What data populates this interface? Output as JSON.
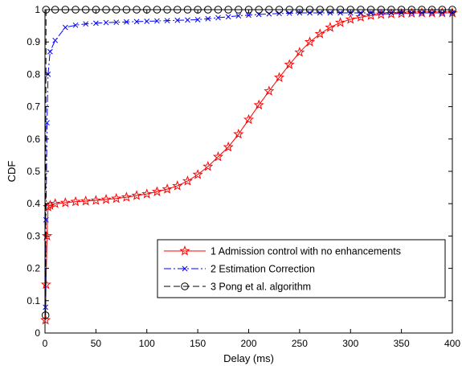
{
  "chart_data": {
    "type": "line",
    "title": "",
    "xlabel": "Delay (ms)",
    "ylabel": "CDF",
    "xlim": [
      0,
      400
    ],
    "ylim": [
      0,
      1
    ],
    "xticks": [
      0,
      50,
      100,
      150,
      200,
      250,
      300,
      350,
      400
    ],
    "yticks": [
      0,
      0.1,
      0.2,
      0.3,
      0.4,
      0.5,
      0.6,
      0.7,
      0.8,
      0.9,
      1
    ],
    "grid": false,
    "legend_position": "lower-right",
    "series": [
      {
        "name": "1 Admission control with no enhancements",
        "color": "#ff0000",
        "line_style": "solid",
        "marker": "star",
        "x": [
          0.5,
          1,
          2,
          3,
          5,
          10,
          20,
          30,
          40,
          50,
          60,
          70,
          80,
          90,
          100,
          110,
          120,
          130,
          140,
          150,
          160,
          170,
          180,
          190,
          200,
          210,
          220,
          230,
          240,
          250,
          260,
          270,
          280,
          290,
          300,
          310,
          320,
          330,
          340,
          350,
          360,
          370,
          380,
          390,
          400
        ],
        "y": [
          0.04,
          0.15,
          0.3,
          0.39,
          0.395,
          0.4,
          0.403,
          0.406,
          0.408,
          0.41,
          0.413,
          0.416,
          0.42,
          0.425,
          0.43,
          0.437,
          0.445,
          0.455,
          0.47,
          0.49,
          0.515,
          0.545,
          0.575,
          0.615,
          0.66,
          0.705,
          0.748,
          0.79,
          0.83,
          0.868,
          0.9,
          0.925,
          0.945,
          0.96,
          0.97,
          0.977,
          0.982,
          0.985,
          0.987,
          0.988,
          0.989,
          0.99,
          0.99,
          0.99,
          0.99
        ]
      },
      {
        "name": "2 Estimation Correction",
        "color": "#0000ff",
        "line_style": "dashdot",
        "marker": "x",
        "x": [
          0.5,
          1,
          2,
          3,
          5,
          10,
          20,
          30,
          40,
          50,
          60,
          70,
          80,
          90,
          100,
          110,
          120,
          130,
          140,
          150,
          160,
          170,
          180,
          190,
          200,
          210,
          220,
          230,
          240,
          250,
          260,
          270,
          280,
          290,
          300,
          310,
          320,
          330,
          340,
          350,
          360,
          370,
          380,
          390,
          400
        ],
        "y": [
          0.08,
          0.35,
          0.65,
          0.8,
          0.87,
          0.905,
          0.945,
          0.952,
          0.956,
          0.958,
          0.96,
          0.961,
          0.962,
          0.963,
          0.964,
          0.965,
          0.966,
          0.967,
          0.968,
          0.969,
          0.972,
          0.975,
          0.978,
          0.981,
          0.983,
          0.985,
          0.987,
          0.988,
          0.989,
          0.99,
          0.99,
          0.99,
          0.99,
          0.99,
          0.99,
          0.99,
          0.99,
          0.99,
          0.99,
          0.99,
          0.99,
          0.99,
          0.99,
          0.99,
          0.99
        ]
      },
      {
        "name": "3 Pong et al. algorithm",
        "color": "#000000",
        "line_style": "dashed",
        "marker": "circle",
        "x": [
          0.5,
          1,
          10,
          20,
          30,
          40,
          50,
          60,
          70,
          80,
          90,
          100,
          110,
          120,
          130,
          140,
          150,
          160,
          170,
          180,
          190,
          200,
          210,
          220,
          230,
          240,
          250,
          260,
          270,
          280,
          290,
          300,
          310,
          320,
          330,
          340,
          350,
          360,
          370,
          380,
          390,
          400
        ],
        "y": [
          0.055,
          1,
          1,
          1,
          1,
          1,
          1,
          1,
          1,
          1,
          1,
          1,
          1,
          1,
          1,
          1,
          1,
          1,
          1,
          1,
          1,
          1,
          1,
          1,
          1,
          1,
          1,
          1,
          1,
          1,
          1,
          1,
          1,
          1,
          1,
          1,
          1,
          1,
          1,
          1,
          1,
          1
        ]
      }
    ]
  }
}
